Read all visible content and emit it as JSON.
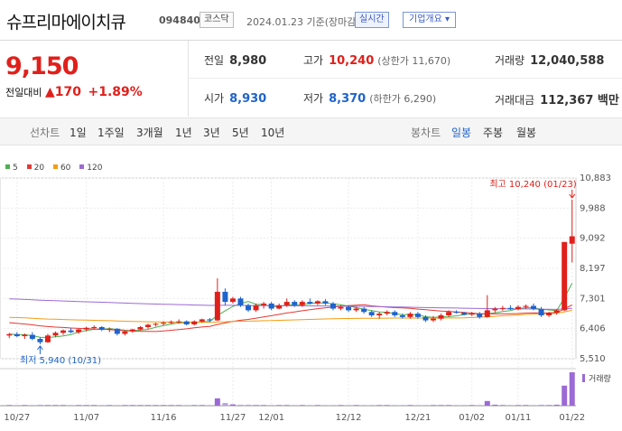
{
  "header": {
    "name": "슈프리마에이치큐",
    "code": "094840",
    "market": "코스닥",
    "date": "2024.01.23 기준(장마감)",
    "realtime": "실시간",
    "info_button": "기업개요 ▾"
  },
  "quote": {
    "price": "9,150",
    "change_label": "전일대비",
    "change_value": "▲170",
    "change_pct": "+1.89%",
    "prev_label": "전일",
    "prev_value": "8,980",
    "high_label": "고가",
    "high_value": "10,240",
    "high_sub": "(상한가 11,670)",
    "volume_label": "거래량",
    "volume_value": "12,040,588",
    "open_label": "시가",
    "open_value": "8,930",
    "low_label": "저가",
    "low_value": "8,370",
    "low_sub": "(하한가 6,290)",
    "amount_label": "거래대금",
    "amount_value": "112,367 백만"
  },
  "tabs": {
    "line_label": "선차트",
    "line_items": [
      "1일",
      "1주일",
      "3개월",
      "1년",
      "3년",
      "5년",
      "10년"
    ],
    "candle_label": "봉차트",
    "candle_items": [
      "일봉",
      "주봉",
      "월봉"
    ],
    "candle_selected": "일봉"
  },
  "colors": {
    "up": "#e0201b",
    "down": "#1f63cc",
    "ma5": "#4caf50",
    "ma20": "#e53935",
    "ma60": "#f39c12",
    "ma120": "#9c6ad4",
    "volume": "#9c6ad4",
    "accent": "#1f63cc"
  },
  "chart_data": {
    "type": "candlestick",
    "legend": [
      "5",
      "20",
      "60",
      "120"
    ],
    "ylim": [
      5510,
      10883
    ],
    "yticks": [
      "10,883",
      "9,988",
      "9,092",
      "8,197",
      "7,301",
      "6,406",
      "5,510"
    ],
    "xticks": [
      "10/27",
      "11/07",
      "11/16",
      "11/27",
      "12/01",
      "12/12",
      "12/21",
      "01/02",
      "01/11",
      "01/22"
    ],
    "high_annotation": "최고 10,240 (01/23)",
    "low_annotation": "최저 5,940 (10/31)",
    "volume_label": "거래량",
    "candles": [
      [
        6200,
        6280,
        6120,
        6240
      ],
      [
        6240,
        6300,
        6150,
        6180
      ],
      [
        6180,
        6260,
        6100,
        6220
      ],
      [
        6220,
        6300,
        6060,
        6100
      ],
      [
        6100,
        6150,
        5940,
        6000
      ],
      [
        6000,
        6250,
        5980,
        6200
      ],
      [
        6200,
        6320,
        6150,
        6280
      ],
      [
        6280,
        6380,
        6220,
        6350
      ],
      [
        6350,
        6420,
        6270,
        6300
      ],
      [
        6300,
        6400,
        6250,
        6380
      ],
      [
        6380,
        6460,
        6320,
        6430
      ],
      [
        6430,
        6500,
        6380,
        6450
      ],
      [
        6450,
        6480,
        6330,
        6370
      ],
      [
        6370,
        6440,
        6300,
        6400
      ],
      [
        6400,
        6420,
        6200,
        6250
      ],
      [
        6250,
        6350,
        6200,
        6320
      ],
      [
        6320,
        6400,
        6280,
        6380
      ],
      [
        6380,
        6480,
        6350,
        6450
      ],
      [
        6450,
        6550,
        6400,
        6520
      ],
      [
        6520,
        6580,
        6470,
        6550
      ],
      [
        6550,
        6620,
        6500,
        6580
      ],
      [
        6580,
        6650,
        6540,
        6600
      ],
      [
        6600,
        6680,
        6550,
        6620
      ],
      [
        6620,
        6650,
        6500,
        6530
      ],
      [
        6530,
        6650,
        6500,
        6620
      ],
      [
        6620,
        6700,
        6580,
        6680
      ],
      [
        6680,
        6720,
        6600,
        6650
      ],
      [
        6650,
        7900,
        6630,
        7500
      ],
      [
        7500,
        7600,
        7100,
        7200
      ],
      [
        7200,
        7350,
        7150,
        7300
      ],
      [
        7300,
        7350,
        7050,
        7100
      ],
      [
        7100,
        7150,
        6900,
        6950
      ],
      [
        6950,
        7150,
        6900,
        7100
      ],
      [
        7100,
        7200,
        7000,
        7150
      ],
      [
        7150,
        7200,
        6950,
        7000
      ],
      [
        7000,
        7150,
        6980,
        7100
      ],
      [
        7100,
        7300,
        7050,
        7200
      ],
      [
        7200,
        7250,
        7050,
        7100
      ],
      [
        7100,
        7250,
        7050,
        7200
      ],
      [
        7200,
        7300,
        7120,
        7150
      ],
      [
        7150,
        7250,
        7100,
        7220
      ],
      [
        7220,
        7280,
        7100,
        7150
      ],
      [
        7150,
        7200,
        6950,
        7000
      ],
      [
        7000,
        7100,
        6950,
        7050
      ],
      [
        7050,
        7100,
        6900,
        6950
      ],
      [
        6950,
        7050,
        6900,
        7000
      ],
      [
        7000,
        7050,
        6850,
        6900
      ],
      [
        6900,
        6950,
        6750,
        6800
      ],
      [
        6800,
        6900,
        6700,
        6850
      ],
      [
        6850,
        6950,
        6800,
        6900
      ],
      [
        6900,
        6950,
        6750,
        6800
      ],
      [
        6800,
        6850,
        6700,
        6750
      ],
      [
        6750,
        6900,
        6700,
        6850
      ],
      [
        6850,
        6900,
        6700,
        6750
      ],
      [
        6750,
        6800,
        6600,
        6650
      ],
      [
        6650,
        6780,
        6600,
        6700
      ],
      [
        6700,
        6850,
        6650,
        6800
      ],
      [
        6800,
        6950,
        6750,
        6900
      ],
      [
        6900,
        6950,
        6850,
        6880
      ],
      [
        6880,
        6900,
        6800,
        6820
      ],
      [
        6820,
        6900,
        6780,
        6850
      ],
      [
        6850,
        6900,
        6700,
        6750
      ],
      [
        6750,
        7400,
        6730,
        6950
      ],
      [
        6950,
        7050,
        6880,
        7000
      ],
      [
        7000,
        7080,
        6940,
        7020
      ],
      [
        7020,
        7100,
        6960,
        6980
      ],
      [
        6980,
        7100,
        6950,
        7050
      ],
      [
        7050,
        7120,
        6990,
        7080
      ],
      [
        7080,
        7150,
        6950,
        6990
      ],
      [
        6990,
        7050,
        6750,
        6800
      ],
      [
        6800,
        6900,
        6750,
        6880
      ],
      [
        6880,
        6980,
        6820,
        6950
      ],
      [
        6950,
        8980,
        6930,
        8980
      ],
      [
        8930,
        10240,
        8370,
        9150
      ]
    ],
    "volumes": [
      2,
      2,
      2,
      2,
      3,
      2,
      2,
      2,
      2,
      2,
      2,
      2,
      2,
      2,
      2,
      2,
      2,
      2,
      2,
      2,
      2,
      2,
      2,
      2,
      2,
      2,
      2,
      22,
      8,
      4,
      3,
      3,
      2,
      2,
      2,
      2,
      2,
      2,
      2,
      2,
      2,
      2,
      2,
      2,
      2,
      2,
      2,
      2,
      2,
      2,
      2,
      2,
      2,
      2,
      2,
      2,
      2,
      2,
      2,
      2,
      2,
      2,
      14,
      3,
      2,
      2,
      2,
      2,
      2,
      3,
      2,
      3,
      60,
      100
    ]
  }
}
